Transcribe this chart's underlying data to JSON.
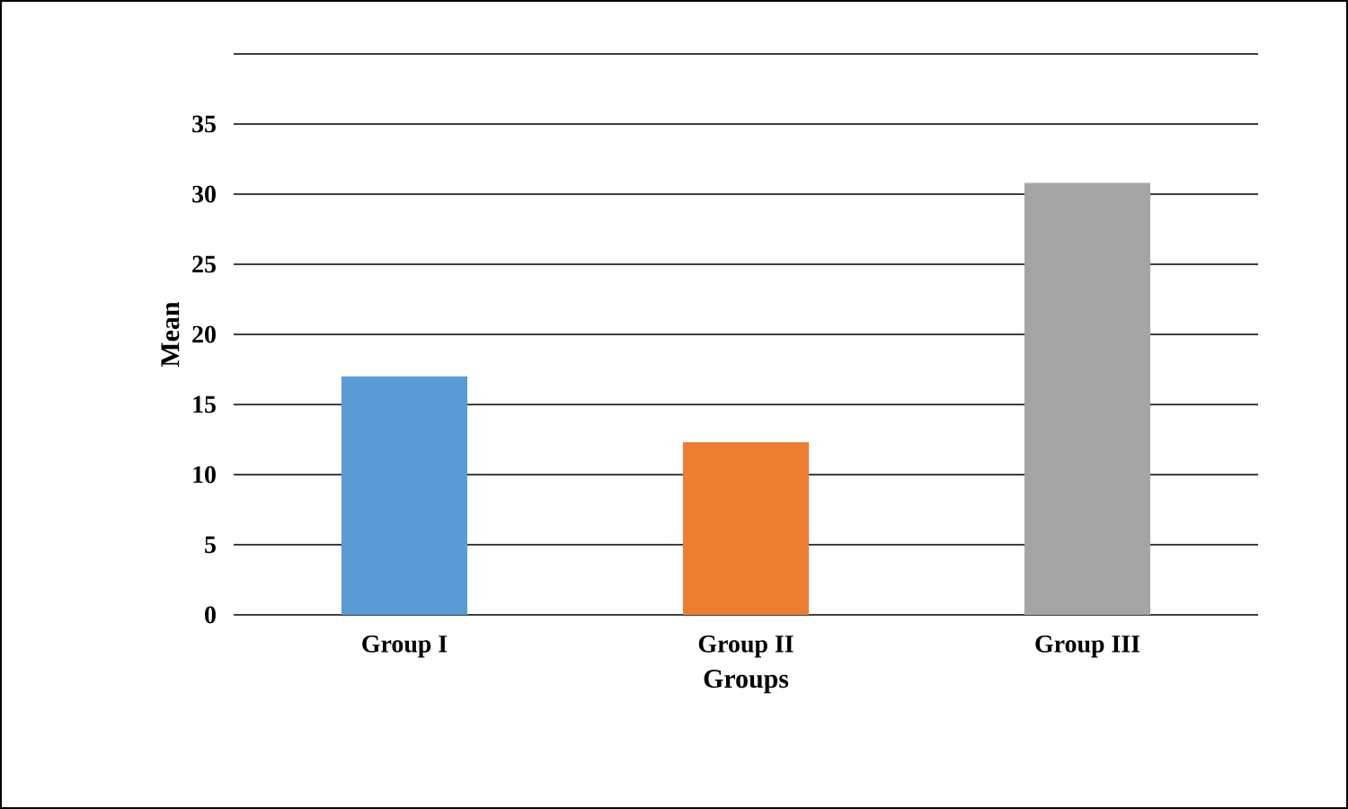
{
  "chart_data": {
    "type": "bar",
    "xlabel": "Groups",
    "ylabel": "Mean",
    "categories": [
      "Group I",
      "Group II",
      "Group III"
    ],
    "values": [
      17,
      12.3,
      30.8
    ],
    "colors": [
      "#5b9bd5",
      "#ed7d31",
      "#a5a5a5"
    ],
    "ylim": [
      0,
      40
    ],
    "yticks": [
      0,
      5,
      10,
      15,
      20,
      25,
      30,
      35,
      {
        "value": 40,
        "label": null
      }
    ],
    "grid": "y"
  }
}
